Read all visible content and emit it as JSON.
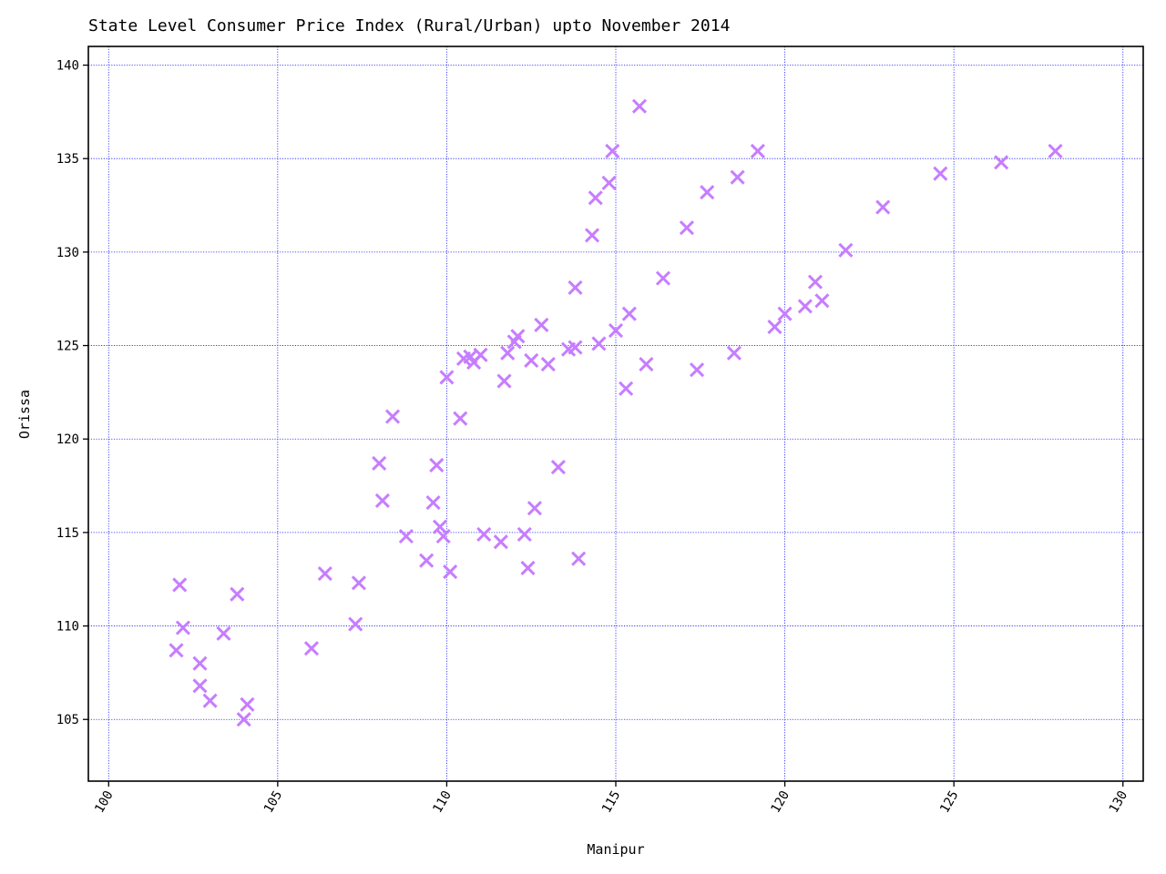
{
  "chart_data": {
    "type": "scatter",
    "title": "State Level Consumer Price Index (Rural/Urban) upto November 2014",
    "xlabel": "Manipur",
    "ylabel": "Orissa",
    "xlim": [
      99.4,
      130.6
    ],
    "ylim": [
      101.7,
      141.0
    ],
    "xticks": [
      100,
      105,
      110,
      115,
      120,
      125,
      130
    ],
    "yticks": [
      105,
      110,
      115,
      120,
      125,
      130,
      135,
      140
    ],
    "grid": true,
    "marker": "x",
    "marker_color": "#c77dff",
    "x": [
      102.0,
      102.1,
      102.2,
      102.7,
      102.7,
      103.0,
      103.4,
      103.8,
      104.0,
      104.1,
      106.0,
      106.4,
      107.3,
      107.4,
      108.0,
      108.1,
      108.4,
      108.8,
      109.4,
      109.6,
      109.7,
      109.8,
      109.9,
      110.0,
      110.1,
      110.4,
      110.5,
      110.7,
      110.8,
      111.0,
      111.1,
      111.6,
      111.7,
      111.8,
      112.0,
      112.1,
      112.3,
      112.4,
      112.5,
      112.6,
      112.8,
      113.0,
      113.3,
      113.6,
      113.8,
      113.8,
      113.9,
      114.3,
      114.4,
      114.5,
      114.8,
      114.9,
      115.0,
      115.3,
      115.4,
      115.7,
      115.9,
      116.4,
      117.1,
      117.4,
      117.7,
      118.5,
      118.6,
      119.2,
      119.7,
      120.0,
      120.6,
      120.9,
      121.1,
      121.8,
      122.9,
      124.6,
      126.4,
      128.0
    ],
    "y": [
      108.7,
      112.2,
      109.9,
      108.0,
      106.8,
      106.0,
      109.6,
      111.7,
      105.0,
      105.8,
      108.8,
      112.8,
      110.1,
      112.3,
      118.7,
      116.7,
      121.2,
      114.8,
      113.5,
      116.6,
      118.6,
      115.3,
      114.8,
      123.3,
      112.9,
      121.1,
      124.3,
      124.4,
      124.1,
      124.5,
      114.9,
      114.5,
      123.1,
      124.6,
      125.2,
      125.5,
      114.9,
      113.1,
      124.2,
      116.3,
      126.1,
      124.0,
      118.5,
      124.8,
      124.9,
      128.1,
      113.6,
      130.9,
      132.9,
      125.1,
      133.7,
      135.4,
      125.8,
      122.7,
      126.7,
      137.8,
      124.0,
      128.6,
      131.3,
      123.7,
      133.2,
      124.6,
      134.0,
      135.4,
      126.0,
      126.7,
      127.1,
      128.4,
      127.4,
      130.1,
      132.4,
      134.2,
      134.8,
      135.4
    ]
  }
}
